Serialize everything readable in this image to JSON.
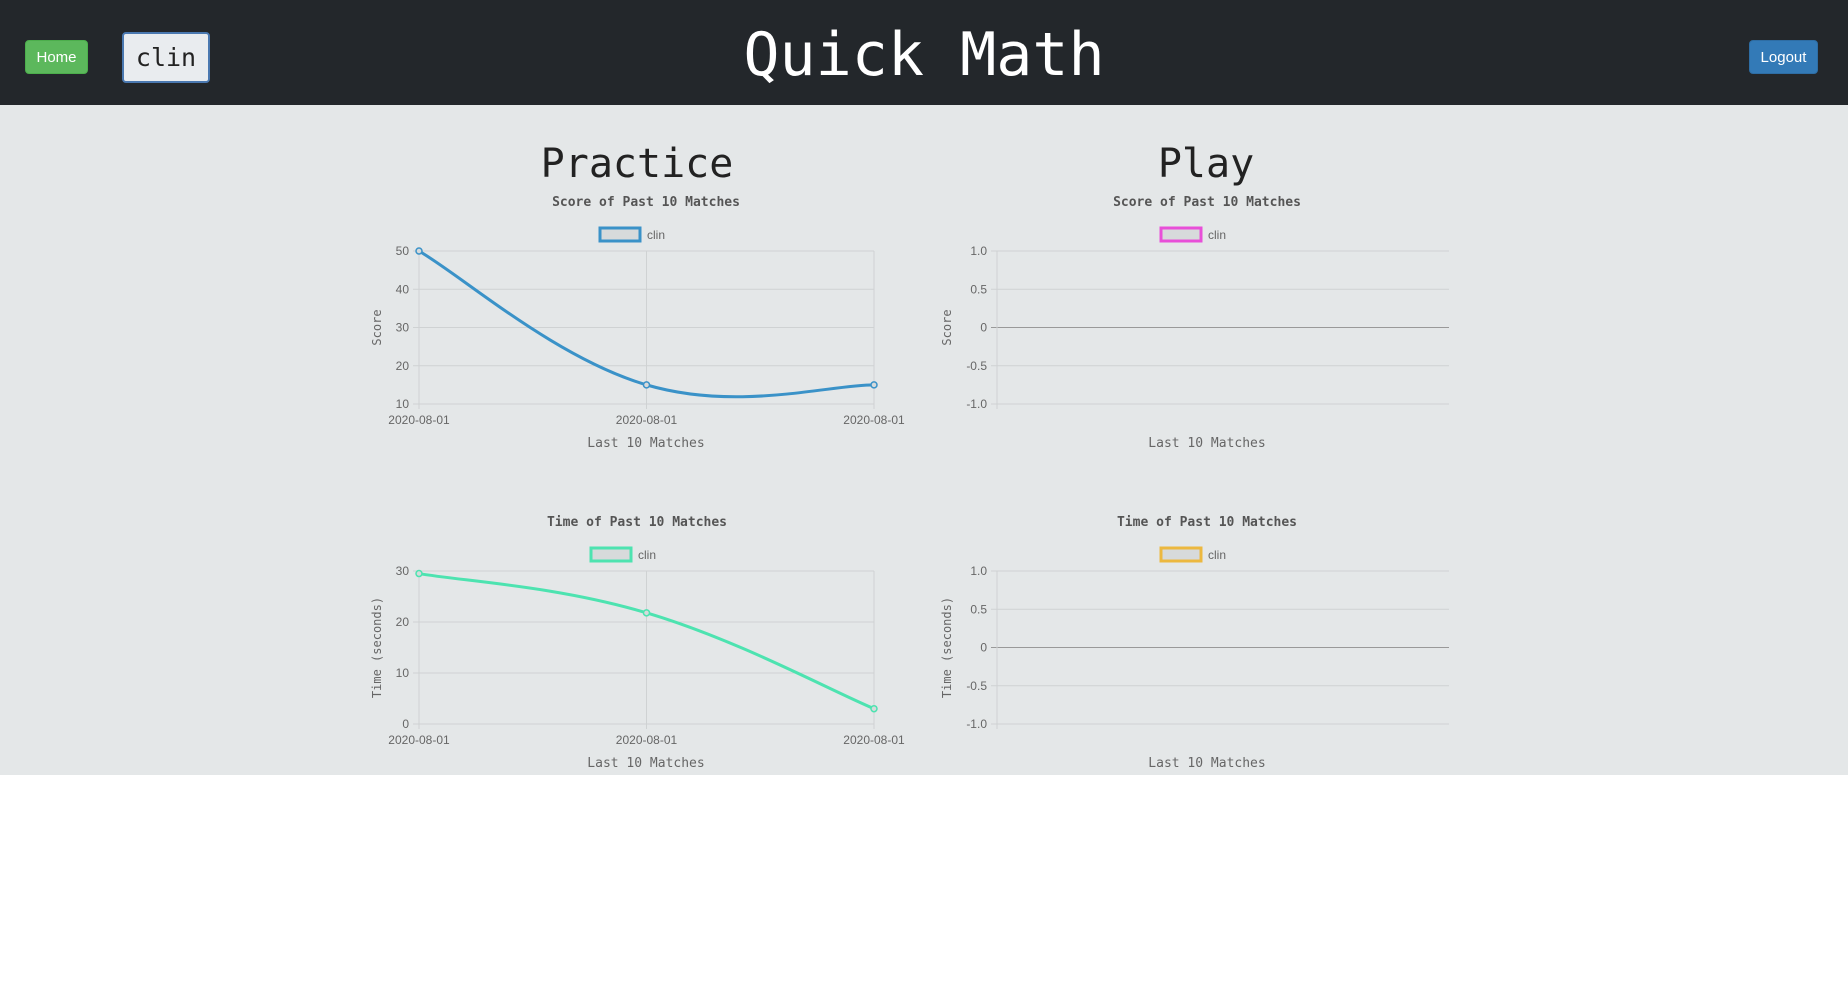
{
  "header": {
    "home_label": "Home",
    "user_label": "clin",
    "title": "Quick Math",
    "logout_label": "Logout"
  },
  "sections": {
    "practice_title": "Practice",
    "play_title": "Play"
  },
  "colors": {
    "header_bg": "#23272b",
    "page_bg": "#e4e7e8",
    "home_button": "#5cb85c",
    "logout_button": "#337ab7"
  },
  "chart_data": [
    {
      "id": "practice-score",
      "type": "line",
      "title": "Score of Past 10 Matches",
      "xlabel": "Last 10 Matches",
      "ylabel": "Score",
      "categories": [
        "2020-08-01",
        "2020-08-01",
        "2020-08-01"
      ],
      "series": [
        {
          "name": "clin",
          "values": [
            50,
            15,
            15
          ],
          "color": "#3a92c8"
        }
      ],
      "yticks": [
        "50",
        "40",
        "30",
        "20",
        "10"
      ],
      "ylim": [
        10,
        50
      ],
      "grid": true,
      "legend": "top"
    },
    {
      "id": "play-score",
      "type": "line",
      "title": "Score of Past 10 Matches",
      "xlabel": "Last 10 Matches",
      "ylabel": "Score",
      "categories": [],
      "series": [
        {
          "name": "clin",
          "values": [],
          "color": "#e84fd8"
        }
      ],
      "yticks": [
        "1.0",
        "0.5",
        "0",
        "-0.5",
        "-1.0"
      ],
      "ylim": [
        -1,
        1
      ],
      "grid": true,
      "legend": "top"
    },
    {
      "id": "practice-time",
      "type": "line",
      "title": "Time of Past 10 Matches",
      "xlabel": "Last 10 Matches",
      "ylabel": "Time (seconds)",
      "categories": [
        "2020-08-01",
        "2020-08-01",
        "2020-08-01"
      ],
      "series": [
        {
          "name": "clin",
          "values": [
            29.5,
            21.8,
            3
          ],
          "color": "#4de3b0"
        }
      ],
      "yticks": [
        "30",
        "20",
        "10",
        "0"
      ],
      "ylim": [
        0,
        30
      ],
      "grid": true,
      "legend": "top"
    },
    {
      "id": "play-time",
      "type": "line",
      "title": "Time of Past 10 Matches",
      "xlabel": "Last 10 Matches",
      "ylabel": "Time (seconds)",
      "categories": [],
      "series": [
        {
          "name": "clin",
          "values": [],
          "color": "#ecb83f"
        }
      ],
      "yticks": [
        "1.0",
        "0.5",
        "0",
        "-0.5",
        "-1.0"
      ],
      "ylim": [
        -1,
        1
      ],
      "grid": true,
      "legend": "top"
    }
  ]
}
